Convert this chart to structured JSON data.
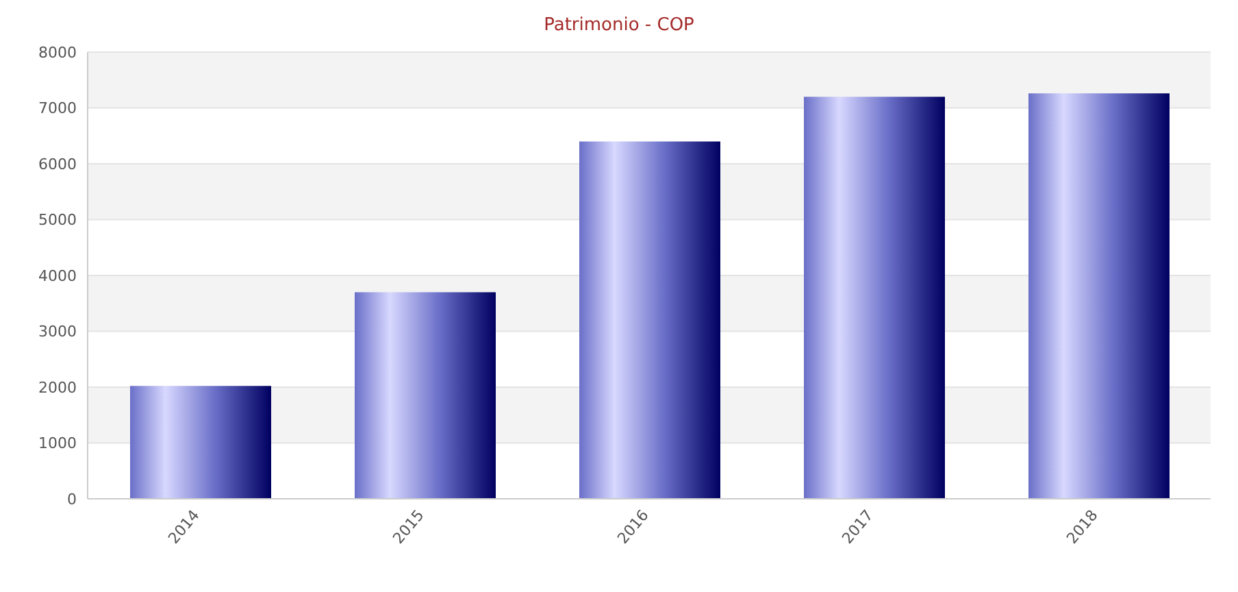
{
  "chart_data": {
    "type": "bar",
    "title": "Patrimonio - COP",
    "categories": [
      "2014",
      "2015",
      "2016",
      "2017",
      "2018"
    ],
    "values": [
      2020,
      3700,
      6400,
      7200,
      7260
    ],
    "color": "#6a6fc8",
    "ylim": [
      0,
      8000
    ],
    "yticks": [
      0,
      1000,
      2000,
      3000,
      4000,
      5000,
      6000,
      7000,
      8000
    ],
    "grid": "y"
  }
}
